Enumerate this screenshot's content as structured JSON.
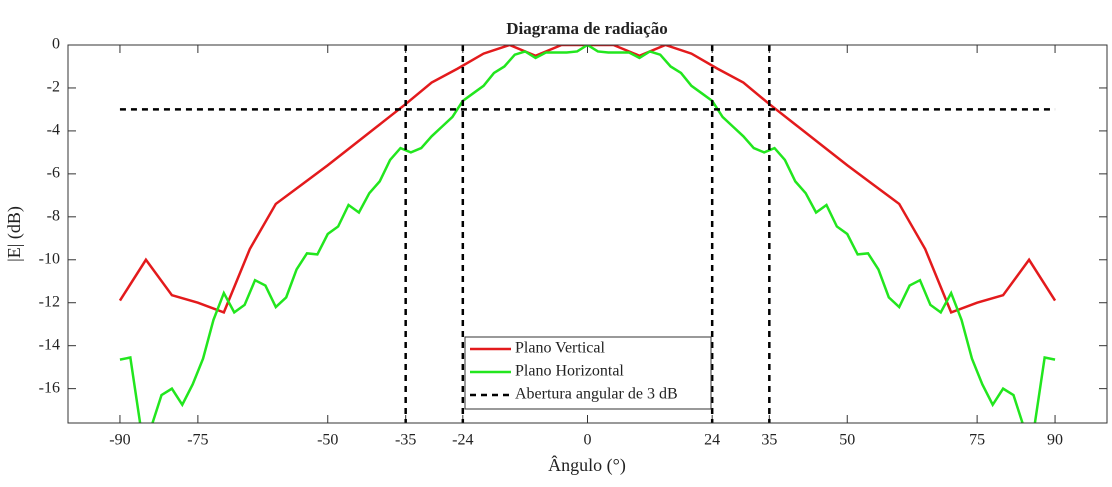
{
  "chart_data": {
    "type": "line",
    "title": "Diagrama de radiação",
    "x_label": "Ângulo (°)",
    "y_label": "|E| (dB)",
    "xlim": [
      -100,
      100
    ],
    "ylim": [
      -17.6,
      0
    ],
    "xticks": [
      -90,
      -75,
      -50,
      -35,
      -24,
      0,
      24,
      35,
      50,
      75,
      90
    ],
    "yticks": [
      0,
      -2,
      -4,
      -6,
      -8,
      -10,
      -12,
      -14,
      -16
    ],
    "legend": "bottom-center",
    "series": [
      {
        "name": "Plano Vertical",
        "color": "#e31a1c",
        "line_style": "solid",
        "x": [
          -90,
          -85,
          -80,
          -75,
          -70,
          -65,
          -60,
          -55,
          -50,
          -45,
          -40,
          -35,
          -30,
          -25,
          -20,
          -15,
          -10,
          -5,
          0,
          5,
          10,
          15,
          20,
          25,
          30,
          35,
          40,
          45,
          50,
          55,
          60,
          65,
          70,
          75,
          80,
          85,
          90
        ],
        "values": [
          -11.9,
          -10.0,
          -11.65,
          -12.0,
          -12.45,
          -9.5,
          -7.4,
          -6.5,
          -5.6,
          -4.65,
          -3.7,
          -2.75,
          -1.75,
          -1.1,
          -0.4,
          0,
          -0.5,
          0,
          0,
          0,
          -0.5,
          0,
          -0.4,
          -1.1,
          -1.75,
          -2.75,
          -3.7,
          -4.65,
          -5.6,
          -6.5,
          -7.4,
          -9.5,
          -12.45,
          -12.0,
          -11.65,
          -10.0,
          -11.9
        ]
      },
      {
        "name": "Plano Horizontal",
        "color": "#22e61e",
        "line_style": "solid",
        "x": [
          -90,
          -88,
          -86,
          -84,
          -82,
          -80,
          -78,
          -76,
          -74,
          -72,
          -70,
          -68,
          -66,
          -64,
          -62,
          -60,
          -58,
          -56,
          -54,
          -52,
          -50,
          -48,
          -46,
          -44,
          -42,
          -40,
          -38,
          -36,
          -34,
          -32,
          -30,
          -28,
          -26,
          -24,
          -22,
          -20,
          -18,
          -16,
          -14,
          -12,
          -10,
          -8,
          -6,
          -4,
          -2,
          0,
          2,
          4,
          6,
          8,
          10,
          12,
          14,
          16,
          18,
          20,
          22,
          24,
          26,
          28,
          30,
          32,
          34,
          36,
          38,
          40,
          42,
          44,
          46,
          48,
          50,
          52,
          54,
          56,
          58,
          60,
          62,
          64,
          66,
          68,
          70,
          72,
          74,
          76,
          78,
          80,
          82,
          84,
          86,
          88,
          90
        ],
        "values": [
          -14.65,
          -14.55,
          -17.8,
          -17.8,
          -16.3,
          -16.0,
          -16.75,
          -15.8,
          -14.6,
          -12.8,
          -11.55,
          -12.45,
          -12.1,
          -10.95,
          -11.2,
          -12.2,
          -11.75,
          -10.45,
          -9.7,
          -9.75,
          -8.8,
          -8.45,
          -7.45,
          -7.8,
          -6.9,
          -6.35,
          -5.35,
          -4.8,
          -5.0,
          -4.8,
          -4.25,
          -3.8,
          -3.35,
          -2.6,
          -2.25,
          -1.9,
          -1.3,
          -1.0,
          -0.45,
          -0.3,
          -0.6,
          -0.35,
          -0.35,
          -0.35,
          -0.3,
          0,
          -0.3,
          -0.35,
          -0.35,
          -0.35,
          -0.6,
          -0.3,
          -0.45,
          -1.0,
          -1.3,
          -1.9,
          -2.25,
          -2.6,
          -3.35,
          -3.8,
          -4.25,
          -4.8,
          -5.0,
          -4.8,
          -5.35,
          -6.35,
          -6.9,
          -7.8,
          -7.45,
          -8.45,
          -8.8,
          -9.75,
          -9.7,
          -10.45,
          -11.75,
          -12.2,
          -11.2,
          -10.95,
          -12.1,
          -12.45,
          -11.55,
          -12.8,
          -14.6,
          -15.8,
          -16.75,
          -16.0,
          -16.3,
          -17.8,
          -17.8,
          -14.55,
          -14.65
        ]
      },
      {
        "name": "Abertura angular de 3 dB",
        "color": "#000000",
        "line_style": "dashed",
        "x": [
          -90,
          90
        ],
        "values": [
          -3,
          -3
        ],
        "vlines": [
          -35,
          -24,
          24,
          35
        ]
      }
    ]
  }
}
